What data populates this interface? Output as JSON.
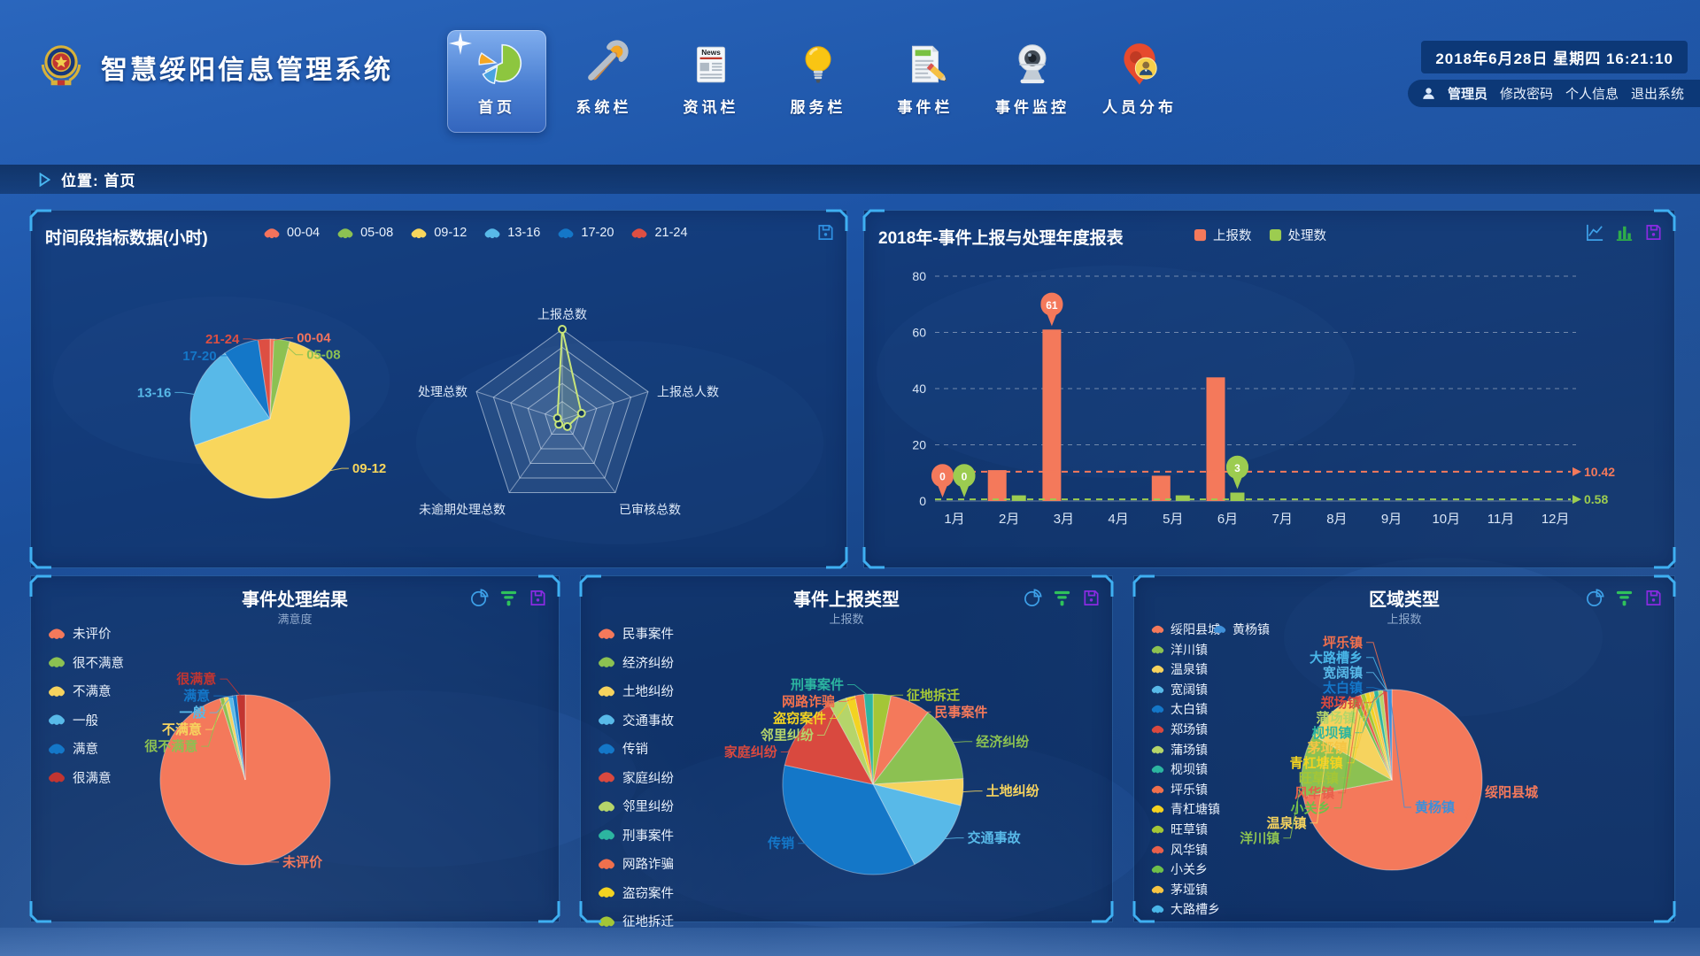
{
  "app": {
    "title": "智慧绥阳信息管理系统"
  },
  "header": {
    "datetime": "2018年6月28日 星期四 16:21:10",
    "user": {
      "name": "管理员",
      "actions": [
        "修改密码",
        "个人信息",
        "退出系统"
      ]
    },
    "nav": [
      {
        "key": "home",
        "label": "首页",
        "icon": "home-pie-icon",
        "active": true
      },
      {
        "key": "system",
        "label": "系统栏",
        "icon": "tools-icon",
        "active": false
      },
      {
        "key": "news",
        "label": "资讯栏",
        "icon": "news-icon",
        "active": false
      },
      {
        "key": "service",
        "label": "服务栏",
        "icon": "bulb-icon",
        "active": false
      },
      {
        "key": "event",
        "label": "事件栏",
        "icon": "document-pencil-icon",
        "active": false
      },
      {
        "key": "monitor",
        "label": "事件监控",
        "icon": "webcam-icon",
        "active": false
      },
      {
        "key": "people",
        "label": "人员分布",
        "icon": "person-pin-icon",
        "active": false
      }
    ]
  },
  "breadcrumb": {
    "label": "位置: 首页"
  },
  "panels": {
    "time": {
      "title": "时间段指标数据(小时)",
      "legend": [
        {
          "label": "00-04",
          "color": "#f4735c"
        },
        {
          "label": "05-08",
          "color": "#8cc152"
        },
        {
          "label": "09-12",
          "color": "#f8d65c"
        },
        {
          "label": "13-16",
          "color": "#58b9e8"
        },
        {
          "label": "17-20",
          "color": "#1477c8"
        },
        {
          "label": "21-24",
          "color": "#dd4f43"
        }
      ],
      "icons": [
        {
          "name": "save-icon",
          "color": "#2f8fe0"
        }
      ]
    },
    "year": {
      "title": "2018年-事件上报与处理年度报表",
      "legend": [
        {
          "label": "上报数",
          "color": "#f4795b"
        },
        {
          "label": "处理数",
          "color": "#9ccc50"
        }
      ],
      "icons": [
        {
          "name": "line-chart-icon",
          "color": "#3da0e8"
        },
        {
          "name": "bar-chart-icon",
          "color": "#2fae49"
        },
        {
          "name": "save-icon",
          "color": "#8a2be2"
        }
      ]
    },
    "result": {
      "title": "事件处理结果",
      "subtitle": "满意度",
      "legend": [
        {
          "label": "未评价",
          "color": "#f4795b"
        },
        {
          "label": "很不满意",
          "color": "#8cc152"
        },
        {
          "label": "不满意",
          "color": "#f6d35e"
        },
        {
          "label": "一般",
          "color": "#58b9e8"
        },
        {
          "label": "满意",
          "color": "#1477c8"
        },
        {
          "label": "很满意",
          "color": "#c23531"
        }
      ],
      "icons": [
        {
          "name": "pie-chart-icon",
          "color": "#3da0e8"
        },
        {
          "name": "funnel-icon",
          "color": "#2fc25b"
        },
        {
          "name": "save-icon",
          "color": "#8a2be2"
        }
      ]
    },
    "type": {
      "title": "事件上报类型",
      "subtitle": "上报数",
      "legend": [
        {
          "label": "民事案件",
          "color": "#f4795b"
        },
        {
          "label": "经济纠纷",
          "color": "#8cc152"
        },
        {
          "label": "土地纠纷",
          "color": "#f6d35e"
        },
        {
          "label": "交通事故",
          "color": "#58b9e8"
        },
        {
          "label": "传销",
          "color": "#1477c8"
        },
        {
          "label": "家庭纠纷",
          "color": "#d9493f"
        },
        {
          "label": "邻里纠纷",
          "color": "#b5d56a"
        },
        {
          "label": "刑事案件",
          "color": "#2cb5a0"
        },
        {
          "label": "网路诈骗",
          "color": "#f0704d"
        },
        {
          "label": "盗窃案件",
          "color": "#f3d321"
        },
        {
          "label": "征地拆迁",
          "color": "#a4c637"
        }
      ],
      "icons": [
        {
          "name": "pie-chart-icon",
          "color": "#3da0e8"
        },
        {
          "name": "funnel-icon",
          "color": "#2fc25b"
        },
        {
          "name": "save-icon",
          "color": "#8a2be2"
        }
      ]
    },
    "region": {
      "title": "区域类型",
      "subtitle": "上报数",
      "legend": [
        {
          "label": "绥阳县城",
          "color": "#f4795b"
        },
        {
          "label": "黄杨镇",
          "color": "#3f8fd8"
        },
        {
          "label": "洋川镇",
          "color": "#8cc152"
        },
        {
          "label": "温泉镇",
          "color": "#f6d35e"
        },
        {
          "label": "宽阔镇",
          "color": "#58b9e8"
        },
        {
          "label": "太白镇",
          "color": "#1477c8"
        },
        {
          "label": "郑场镇",
          "color": "#d9493f"
        },
        {
          "label": "蒲场镇",
          "color": "#b5d56a"
        },
        {
          "label": "枧坝镇",
          "color": "#2cb5a0"
        },
        {
          "label": "坪乐镇",
          "color": "#f0704d"
        },
        {
          "label": "青杠塘镇",
          "color": "#f3d321"
        },
        {
          "label": "旺草镇",
          "color": "#a4c637"
        },
        {
          "label": "风华镇",
          "color": "#e8604c"
        },
        {
          "label": "小关乡",
          "color": "#6fbf4a"
        },
        {
          "label": "茅垭镇",
          "color": "#f6c544"
        },
        {
          "label": "大路槽乡",
          "color": "#49b6e8"
        }
      ],
      "icons": [
        {
          "name": "pie-chart-icon",
          "color": "#3da0e8"
        },
        {
          "name": "funnel-icon",
          "color": "#2fc25b"
        },
        {
          "name": "save-icon",
          "color": "#8a2be2"
        }
      ]
    }
  },
  "chart_data": [
    {
      "id": "time_pie",
      "type": "pie",
      "title": "时间段指标数据(小时)",
      "items": [
        {
          "name": "00-04",
          "value": 1,
          "color": "#f4735c"
        },
        {
          "name": "05-08",
          "value": 4,
          "color": "#8cc152"
        },
        {
          "name": "09-12",
          "value": 82,
          "color": "#f8d65c"
        },
        {
          "name": "13-16",
          "value": 26,
          "color": "#58b9e8"
        },
        {
          "name": "17-20",
          "value": 9,
          "color": "#1477c8"
        },
        {
          "name": "21-24",
          "value": 3,
          "color": "#dd4f43"
        }
      ]
    },
    {
      "id": "time_radar",
      "type": "radar",
      "levels": 5,
      "indicators": [
        {
          "name": "上报总数",
          "max": 125
        },
        {
          "name": "上报总人数",
          "max": 125
        },
        {
          "name": "已审核总数",
          "max": 125
        },
        {
          "name": "未逾期处理总数",
          "max": 125
        },
        {
          "name": "处理总数",
          "max": 125
        }
      ],
      "series": [
        {
          "name": "时间段指标",
          "color": "#c8e57a",
          "values": [
            125,
            28,
            12,
            8,
            7
          ]
        }
      ]
    },
    {
      "id": "year_bar",
      "type": "bar",
      "title": "2018年-事件上报与处理年度报表",
      "categories": [
        "1月",
        "2月",
        "3月",
        "4月",
        "5月",
        "6月",
        "7月",
        "8月",
        "9月",
        "10月",
        "11月",
        "12月"
      ],
      "ylim": [
        0,
        80
      ],
      "yticks": [
        0,
        20,
        40,
        60,
        80
      ],
      "series": [
        {
          "name": "上报数",
          "color": "#f4795b",
          "values": [
            0,
            11,
            61,
            0,
            9,
            44,
            0,
            0,
            0,
            0,
            0,
            0
          ],
          "average": 10.42,
          "avg_label": "10.42"
        },
        {
          "name": "处理数",
          "color": "#9ccc50",
          "values": [
            0,
            2,
            0,
            0,
            2,
            3,
            0,
            0,
            0,
            0,
            0,
            0
          ],
          "average": 0.58,
          "avg_label": "0.58"
        }
      ]
    },
    {
      "id": "result_pie",
      "type": "pie",
      "title": "事件处理结果",
      "subtitle": "满意度",
      "items": [
        {
          "name": "未评价",
          "value": 119,
          "color": "#f4795b"
        },
        {
          "name": "很不满意",
          "value": 1,
          "color": "#8cc152"
        },
        {
          "name": "不满意",
          "value": 1,
          "color": "#f6d35e"
        },
        {
          "name": "一般",
          "value": 1,
          "color": "#58b9e8"
        },
        {
          "name": "满意",
          "value": 1,
          "color": "#1477c8"
        },
        {
          "name": "很满意",
          "value": 2,
          "color": "#c23531"
        }
      ]
    },
    {
      "id": "type_pie",
      "type": "pie",
      "title": "事件上报类型",
      "subtitle": "上报数",
      "items": [
        {
          "name": "征地拆迁",
          "value": 4,
          "color": "#a4c637"
        },
        {
          "name": "民事案件",
          "value": 9,
          "color": "#f4795b"
        },
        {
          "name": "经济纠纷",
          "value": 17,
          "color": "#8cc152"
        },
        {
          "name": "土地纠纷",
          "value": 6,
          "color": "#f6d35e"
        },
        {
          "name": "交通事故",
          "value": 17,
          "color": "#58b9e8"
        },
        {
          "name": "传销",
          "value": 45,
          "color": "#1477c8"
        },
        {
          "name": "家庭纠纷",
          "value": 17,
          "color": "#d9493f"
        },
        {
          "name": "邻里纠纷",
          "value": 4,
          "color": "#b5d56a"
        },
        {
          "name": "盗窃案件",
          "value": 2,
          "color": "#f3d321"
        },
        {
          "name": "网路诈骗",
          "value": 2,
          "color": "#f0704d"
        },
        {
          "name": "刑事案件",
          "value": 2,
          "color": "#2cb5a0"
        }
      ]
    },
    {
      "id": "region_pie",
      "type": "pie",
      "title": "区域类型",
      "subtitle": "上报数",
      "items": [
        {
          "name": "绥阳县城",
          "value": 90,
          "color": "#f4795b"
        },
        {
          "name": "洋川镇",
          "value": 14,
          "color": "#8cc152"
        },
        {
          "name": "温泉镇",
          "value": 12,
          "color": "#f6d35e"
        },
        {
          "name": "小关乡",
          "value": 1,
          "color": "#6fbf4a"
        },
        {
          "name": "风华镇",
          "value": 1,
          "color": "#e8604c"
        },
        {
          "name": "旺草镇",
          "value": 1,
          "color": "#a4c637"
        },
        {
          "name": "青杠塘镇",
          "value": 1,
          "color": "#f3d321"
        },
        {
          "name": "茅垭镇",
          "value": 1,
          "color": "#f6c544"
        },
        {
          "name": "枧坝镇",
          "value": 1,
          "color": "#2cb5a0"
        },
        {
          "name": "蒲场镇",
          "value": 1,
          "color": "#b5d56a"
        },
        {
          "name": "郑场镇",
          "value": 1,
          "color": "#d9493f"
        },
        {
          "name": "太白镇",
          "value": 0,
          "color": "#1477c8"
        },
        {
          "name": "宽阔镇",
          "value": 0,
          "color": "#58b9e8"
        },
        {
          "name": "大路槽乡",
          "value": 0,
          "color": "#49b6e8"
        },
        {
          "name": "坪乐镇",
          "value": 0,
          "color": "#f0704d"
        },
        {
          "name": "黄杨镇",
          "value": 1,
          "color": "#3f8fd8",
          "label_side": "right"
        }
      ]
    }
  ]
}
